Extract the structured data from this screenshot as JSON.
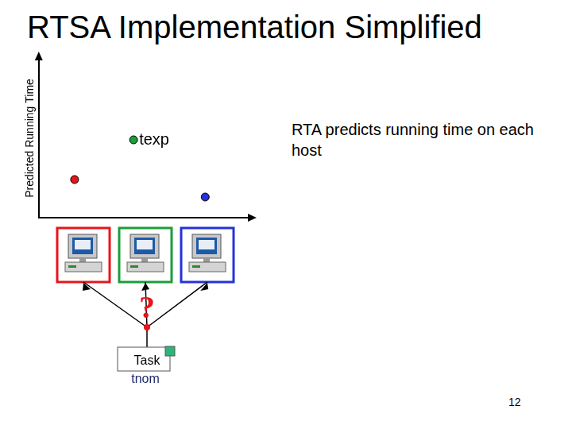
{
  "title": "RTSA Implementation Simplified",
  "chart_data": {
    "type": "scatter",
    "y_label": "Predicted Running Time",
    "x": [
      17,
      45,
      79
    ],
    "values": [
      24,
      49,
      13
    ],
    "colors": [
      "#e8141c",
      "#1a9e3a",
      "#2432d8"
    ],
    "xlim": [
      0,
      100
    ],
    "ylim": [
      0,
      100
    ],
    "tick_labels": false,
    "grid": false,
    "annotations": [
      {
        "text": "texp",
        "x": 45,
        "y": 49
      }
    ]
  },
  "note": "RTA predicts running time on each host",
  "hosts": [
    {
      "color": "#e8141c"
    },
    {
      "color": "#1a9e3a"
    },
    {
      "color": "#2432d8"
    }
  ],
  "question": "?",
  "task": {
    "label": "Task",
    "name": "tnom"
  },
  "page_number": "12"
}
